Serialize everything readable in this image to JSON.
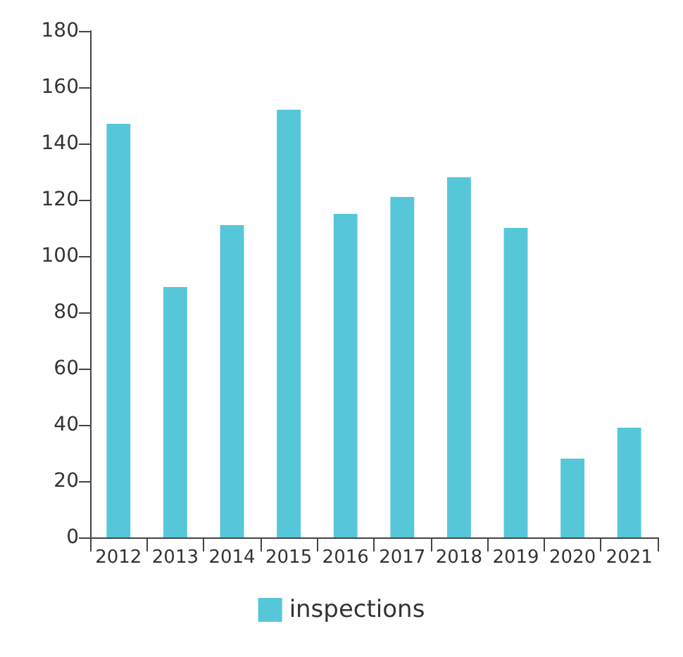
{
  "chart_data": {
    "type": "bar",
    "categories": [
      "2012",
      "2013",
      "2014",
      "2015",
      "2016",
      "2017",
      "2018",
      "2019",
      "2020",
      "2021"
    ],
    "series": [
      {
        "name": "inspections",
        "color": "#56c7d8",
        "values": [
          147,
          89,
          111,
          152,
          115,
          121,
          128,
          110,
          28,
          39
        ]
      }
    ],
    "ylim": [
      0,
      180
    ],
    "yticks": [
      0,
      20,
      40,
      60,
      80,
      100,
      120,
      140,
      160,
      180
    ],
    "grid": false,
    "legend": "bottom"
  }
}
